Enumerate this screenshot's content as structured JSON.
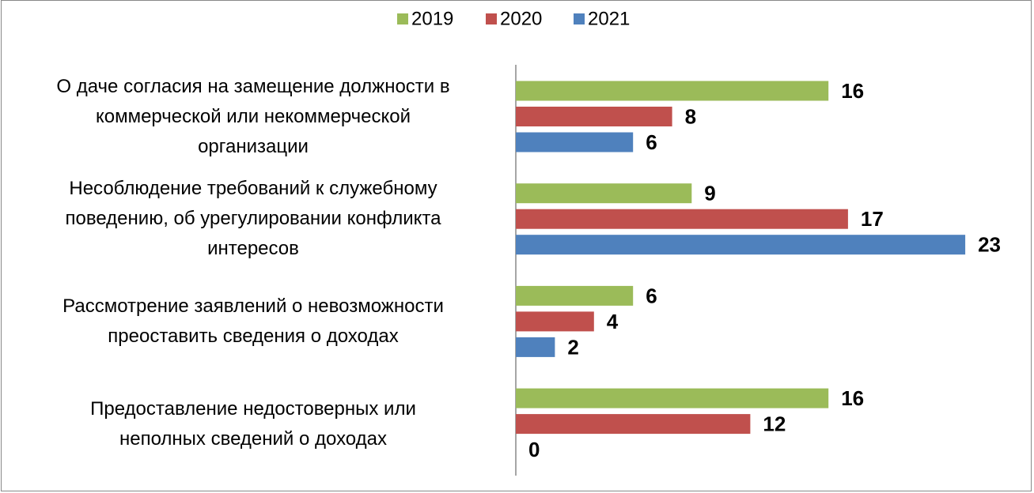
{
  "chart_data": {
    "type": "bar",
    "orientation": "horizontal",
    "categories": [
      "О даче согласия на замещение должности в\nкоммерческой или некоммерческой\nорганизации",
      "Несоблюдение требований к служебному\nповедению, об урегулировании конфликта\nинтересов",
      "Рассмотрение заявлений о невозможности\nпреоставить сведения о доходах",
      "Предоставление недостоверных или\nнеполных сведений о доходах"
    ],
    "series": [
      {
        "name": "2019",
        "color": "#9bbb59",
        "values": [
          16,
          9,
          6,
          16
        ]
      },
      {
        "name": "2020",
        "color": "#c0504d",
        "values": [
          8,
          17,
          4,
          12
        ]
      },
      {
        "name": "2021",
        "color": "#4f81bd",
        "values": [
          6,
          23,
          2,
          0
        ]
      }
    ],
    "legend": "top"
  }
}
